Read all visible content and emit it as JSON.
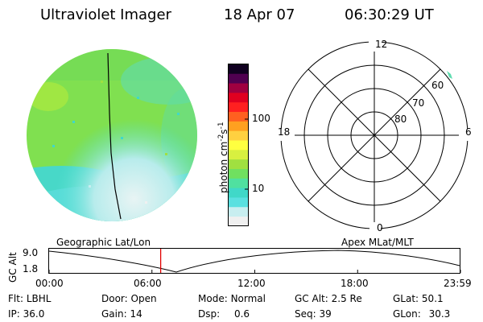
{
  "header": {
    "instrument": "Ultraviolet Imager",
    "date": "18 Apr 07",
    "time": "06:30:29 UT"
  },
  "colorbar": {
    "unit": "photon cm",
    "unit_exp1": "-2",
    "unit_mid": "s",
    "unit_exp2": "-1",
    "tick_high": "100",
    "tick_low": "10",
    "colors": [
      "#f0f0f0",
      "#c8eef0",
      "#5ae0e0",
      "#40d8c8",
      "#50e0a0",
      "#70e060",
      "#a0e040",
      "#d8f040",
      "#ffff40",
      "#ffd040",
      "#ffa020",
      "#ff6020",
      "#ff2020",
      "#e00020",
      "#a00040",
      "#500050",
      "#100020"
    ]
  },
  "polar": {
    "mlt_12": "12",
    "mlt_18": "18",
    "mlt_6": "6",
    "mlt_0": "0",
    "lat_60": "60",
    "lat_70": "70",
    "lat_80": "80"
  },
  "timeline": {
    "ylabel": "GC Alt",
    "y_high": "9.0",
    "y_low": "1.8",
    "left_caption": "Geographic Lat/Lon",
    "right_caption": "Apex MLat/MLT",
    "ticks": [
      "00:00",
      "06:00",
      "12:00",
      "18:00",
      "23:59"
    ],
    "current_time_hours": 6.508
  },
  "info": {
    "flt_label": "Flt:",
    "flt_value": "LBHL",
    "ip_label": "IP:",
    "ip_value": "36.0",
    "door_label": "Door:",
    "door_value": "Open",
    "gain_label": "Gain:",
    "gain_value": "14",
    "mode_label": "Mode:",
    "mode_value": "Normal",
    "dsp_label": "Dsp:",
    "dsp_value": "0.6",
    "gcalt_label": "GC Alt:",
    "gcalt_value": "2.5 Re",
    "seq_label": "Seq:",
    "seq_value": "39",
    "glat_label": "GLat:",
    "glat_value": "50.1",
    "glon_label": "GLon:",
    "glon_value": "30.3"
  }
}
